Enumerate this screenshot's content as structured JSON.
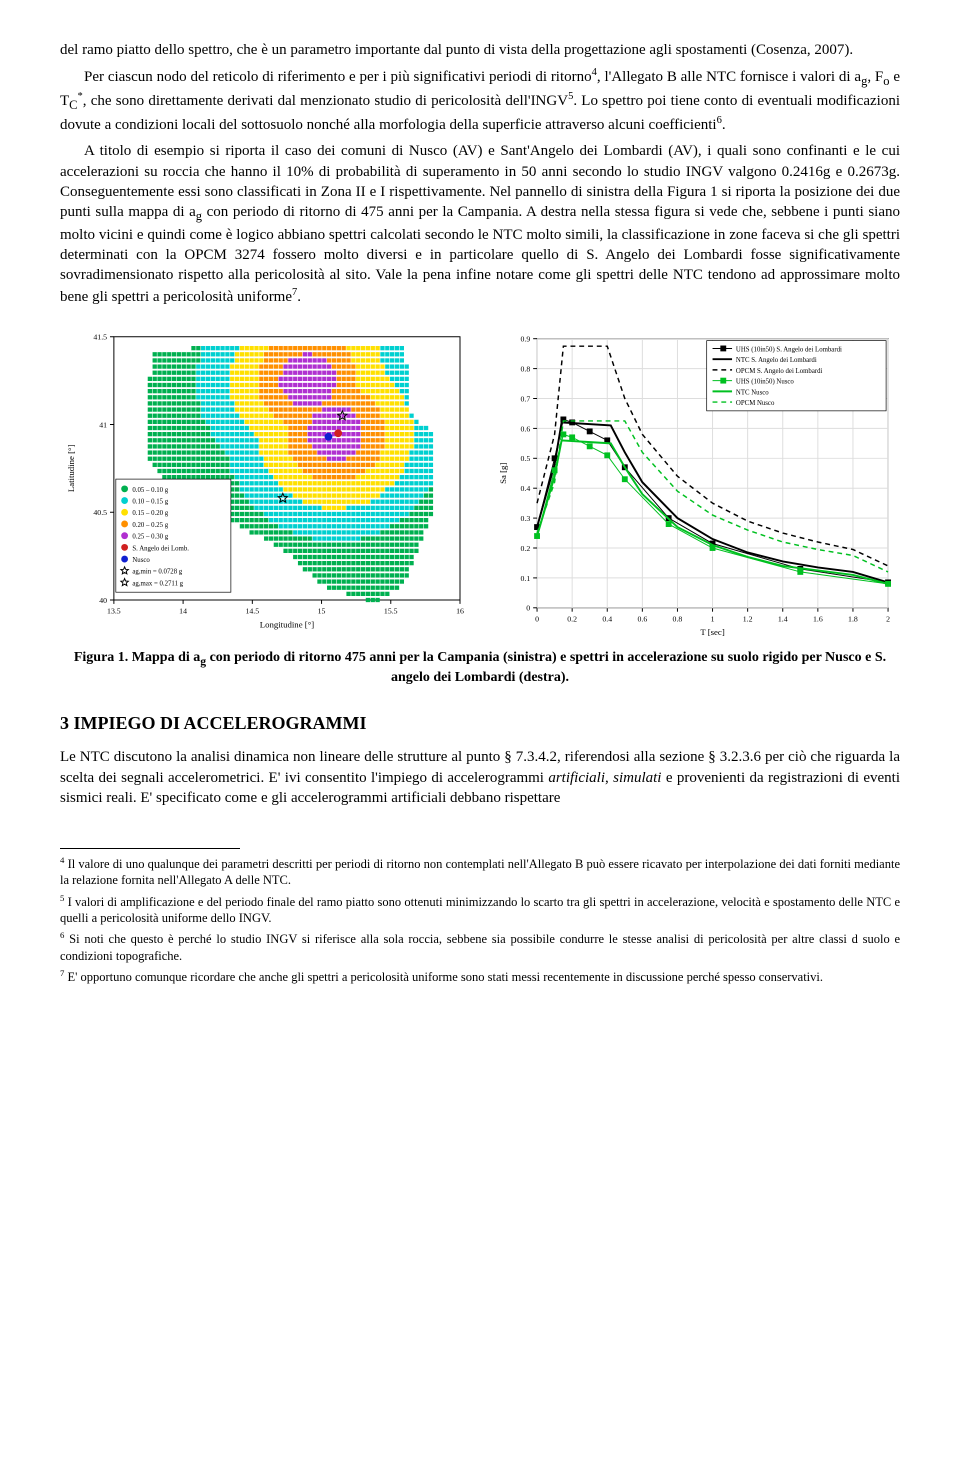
{
  "para1": "del ramo piatto dello spettro, che è un parametro importante dal punto di vista della progettazione agli spostamenti (Cosenza, 2007).",
  "para2_a": "Per ciascun nodo del reticolo di riferimento e per i più significativi periodi di ritorno",
  "para2_b": ", l'Allegato B alle NTC fornisce i valori di a",
  "para2_c": ", F",
  "para2_d": " e T",
  "para2_e": ", che sono direttamente derivati dal menzionato studio di pericolosità dell'INGV",
  "para2_f": ". Lo spettro poi tiene conto di eventuali modificazioni dovute a condizioni locali del sottosuolo nonché alla morfologia della superficie attraverso alcuni coefficienti",
  "para2_g": ".",
  "para3_a": "A titolo di esempio si riporta il caso dei comuni di Nusco (AV) e Sant'Angelo dei Lombardi (AV), i quali sono confinanti e le cui accelerazioni su roccia che hanno il 10% di probabilità di superamento in 50 anni secondo lo studio INGV valgono 0.2416g e 0.2673g. Conseguentemente essi sono classificati in Zona II e I rispettivamente. Nel pannello di sinistra della Figura 1 si riporta la posizione dei due punti sulla mappa di a",
  "para3_b": " con periodo di ritorno di 475 anni per la Campania. A destra nella stessa figura si vede che, sebbene i punti siano molto vicini e quindi come è logico abbiano spettri calcolati secondo le NTC molto simili, la classificazione in zone faceva si che gli spettri determinati con la OPCM 3274 fossero molto diversi e in particolare quello di S. Angelo dei Lombardi fosse significativamente sovradimensionato rispetto alla pericolosità al sito. Vale la pena infine notare come gli spettri delle NTC tendono ad approssimare molto bene gli spettri a pericolosità uniforme",
  "para3_c": ".",
  "map": {
    "xlabel": "Longitudine [°]",
    "ylabel": "Latitudine [°]",
    "xlim": [
      13.5,
      16
    ],
    "ylim": [
      40,
      41.5
    ],
    "xticks": [
      "13.5",
      "14",
      "14.5",
      "15",
      "15.5",
      "16"
    ],
    "yticks": [
      "40",
      "40.5",
      "41",
      "41.5"
    ],
    "legend": [
      {
        "color": "#00b050",
        "label": "0.05 – 0.10 g"
      },
      {
        "color": "#00d0d0",
        "label": "0.10 – 0.15 g"
      },
      {
        "color": "#ffe000",
        "label": "0.15 – 0.20 g"
      },
      {
        "color": "#ff9000",
        "label": "0.20 – 0.25 g"
      },
      {
        "color": "#b030d0",
        "label": "0.25 – 0.30 g"
      },
      {
        "color": "#d02020",
        "label": "S. Angelo dei Lomb."
      },
      {
        "color": "#1020d0",
        "label": "Nusco"
      },
      {
        "color": "#ffffff",
        "stroke": "#000",
        "label": "ag,min = 0.0728 g",
        "mark": "star"
      },
      {
        "color": "#ffffff",
        "stroke": "#000",
        "label": "ag,max = 0.2711 g",
        "mark": "star"
      }
    ],
    "bands": [
      {
        "color": "#00b050"
      },
      {
        "color": "#00d0d0"
      },
      {
        "color": "#ffe000"
      },
      {
        "color": "#ff9000"
      },
      {
        "color": "#b030d0"
      }
    ],
    "markers": {
      "nusco": {
        "x": 15.05,
        "y": 40.93,
        "color": "#1020d0"
      },
      "sangelo": {
        "x": 15.12,
        "y": 40.95,
        "color": "#d02020"
      },
      "star1": {
        "x": 15.15,
        "y": 41.05
      },
      "star2": {
        "x": 14.0,
        "y": 40.55
      },
      "star3": {
        "x": 14.72,
        "y": 40.58
      }
    }
  },
  "spectra": {
    "xlabel": "T [sec]",
    "ylabel": "Sa [g]",
    "xlim": [
      0,
      2
    ],
    "ylim": [
      0,
      0.9
    ],
    "xticks": [
      "0",
      "0.2",
      "0.4",
      "0.6",
      "0.8",
      "1",
      "1.2",
      "1.4",
      "1.6",
      "1.8",
      "2"
    ],
    "yticks": [
      "0",
      "0.1",
      "0.2",
      "0.3",
      "0.4",
      "0.5",
      "0.6",
      "0.7",
      "0.8",
      "0.9"
    ],
    "legend": [
      {
        "key": "uhs_sa",
        "color": "#000000",
        "dash": "",
        "w": 1,
        "mark": "sq",
        "label": "UHS (10in50) S. Angelo dei Lombardi"
      },
      {
        "key": "ntc_sa",
        "color": "#000000",
        "dash": "",
        "w": 2,
        "label": "NTC S. Angelo dei Lombardi"
      },
      {
        "key": "opcm_sa",
        "color": "#000000",
        "dash": "5,4",
        "w": 1.5,
        "label": "OPCM S. Angelo dei Lombardi"
      },
      {
        "key": "uhs_nu",
        "color": "#00c020",
        "dash": "",
        "w": 1,
        "mark": "sq",
        "label": "UHS (10in50) Nusco"
      },
      {
        "key": "ntc_nu",
        "color": "#00c020",
        "dash": "",
        "w": 2,
        "label": "NTC Nusco"
      },
      {
        "key": "opcm_nu",
        "color": "#00c020",
        "dash": "5,4",
        "w": 1.5,
        "label": "OPCM Nusco"
      }
    ],
    "series": {
      "opcm_sa": [
        [
          0,
          0.35
        ],
        [
          0.1,
          0.58
        ],
        [
          0.15,
          0.875
        ],
        [
          0.4,
          0.875
        ],
        [
          0.5,
          0.7
        ],
        [
          0.6,
          0.58
        ],
        [
          0.8,
          0.44
        ],
        [
          1.0,
          0.35
        ],
        [
          1.2,
          0.29
        ],
        [
          1.4,
          0.25
        ],
        [
          1.6,
          0.22
        ],
        [
          1.8,
          0.195
        ],
        [
          2.0,
          0.14
        ]
      ],
      "ntc_sa": [
        [
          0,
          0.27
        ],
        [
          0.1,
          0.48
        ],
        [
          0.14,
          0.62
        ],
        [
          0.42,
          0.61
        ],
        [
          0.5,
          0.52
        ],
        [
          0.6,
          0.42
        ],
        [
          0.8,
          0.3
        ],
        [
          1.0,
          0.23
        ],
        [
          1.2,
          0.185
        ],
        [
          1.4,
          0.155
        ],
        [
          1.6,
          0.135
        ],
        [
          1.8,
          0.12
        ],
        [
          2.0,
          0.085
        ]
      ],
      "uhs_sa": [
        [
          0,
          0.27
        ],
        [
          0.1,
          0.5
        ],
        [
          0.15,
          0.63
        ],
        [
          0.2,
          0.62
        ],
        [
          0.3,
          0.59
        ],
        [
          0.4,
          0.56
        ],
        [
          0.5,
          0.47
        ],
        [
          0.75,
          0.3
        ],
        [
          1.0,
          0.215
        ],
        [
          1.5,
          0.13
        ],
        [
          2.0,
          0.085
        ]
      ],
      "opcm_nu": [
        [
          0,
          0.25
        ],
        [
          0.1,
          0.42
        ],
        [
          0.15,
          0.625
        ],
        [
          0.5,
          0.625
        ],
        [
          0.6,
          0.52
        ],
        [
          0.8,
          0.39
        ],
        [
          1.0,
          0.31
        ],
        [
          1.2,
          0.26
        ],
        [
          1.4,
          0.22
        ],
        [
          1.6,
          0.195
        ],
        [
          1.8,
          0.175
        ],
        [
          2.0,
          0.12
        ]
      ],
      "ntc_nu": [
        [
          0,
          0.24
        ],
        [
          0.1,
          0.44
        ],
        [
          0.14,
          0.56
        ],
        [
          0.42,
          0.55
        ],
        [
          0.5,
          0.47
        ],
        [
          0.6,
          0.38
        ],
        [
          0.8,
          0.27
        ],
        [
          1.0,
          0.21
        ],
        [
          1.2,
          0.17
        ],
        [
          1.4,
          0.14
        ],
        [
          1.6,
          0.125
        ],
        [
          1.8,
          0.11
        ],
        [
          2.0,
          0.08
        ]
      ],
      "uhs_nu": [
        [
          0,
          0.24
        ],
        [
          0.1,
          0.46
        ],
        [
          0.15,
          0.58
        ],
        [
          0.2,
          0.57
        ],
        [
          0.3,
          0.54
        ],
        [
          0.4,
          0.51
        ],
        [
          0.5,
          0.43
        ],
        [
          0.75,
          0.28
        ],
        [
          1.0,
          0.2
        ],
        [
          1.5,
          0.12
        ],
        [
          2.0,
          0.08
        ]
      ]
    }
  },
  "caption_a": "Figura 1. Mappa di a",
  "caption_b": " con periodo di ritorno 475 anni per la Campania (sinistra) e spettri in accelerazione su suolo rigido per Nusco e S. angelo dei Lombardi (destra).",
  "h3": "3  IMPIEGO DI ACCELEROGRAMMI",
  "para4": "Le NTC discutono la analisi dinamica non lineare delle strutture al punto § 7.3.4.2, riferendosi alla sezione § 3.2.3.6 per ciò che riguarda la scelta dei segnali accelerometrici. E' ivi consentito l'impiego di accelerogrammi artificiali, simulati e provenienti da registrazioni di eventi sismici reali. E' specificato come e gli accelerogrammi artificiali debbano rispettare",
  "fn4": "Il valore di uno qualunque dei parametri descritti per periodi di ritorno non contemplati nell'Allegato B può essere ricavato per interpolazione dei dati forniti mediante la relazione fornita nell'Allegato A delle NTC.",
  "fn5": "I valori di amplificazione e del periodo finale del ramo piatto sono ottenuti minimizzando lo scarto tra gli spettri in accelerazione, velocità e spostamento delle NTC e quelli a pericolosità uniforme dello INGV.",
  "fn6": "Si noti che questo è perché lo studio INGV si riferisce alla sola roccia, sebbene sia possibile condurre le stesse analisi di pericolosità per altre classi d suolo e condizioni topografiche.",
  "fn7": "E' opportuno comunque ricordare che anche gli spettri a pericolosità uniforme sono stati messi recentemente in discussione perché spesso conservativi."
}
